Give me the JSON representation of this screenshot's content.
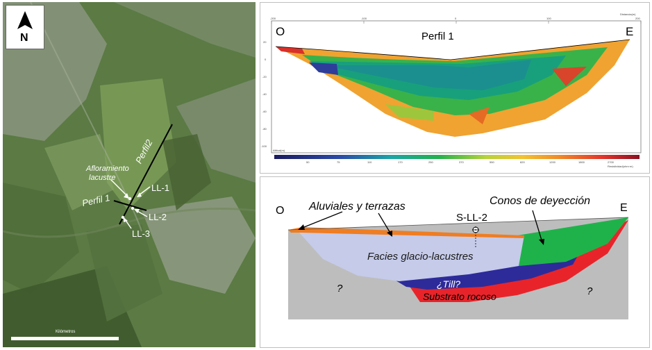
{
  "map": {
    "north_label": "N",
    "outcrop_label_1": "Afloramiento",
    "outcrop_label_2": "lacustre",
    "profile1_label": "Perfil 1",
    "profile2_label": "Perfil2",
    "points": [
      "LL-1",
      "LL-2",
      "LL-3"
    ],
    "scale_label": "Kilómetros"
  },
  "profile": {
    "title": "Perfil 1",
    "west_label": "O",
    "east_label": "E",
    "top_axis_ticks": [
      "-200",
      "-100",
      "0",
      "100",
      "200"
    ],
    "top_axis_unit": "Distancia(m)",
    "left_axis_ticks": [
      "20",
      "0",
      "-20",
      "-40",
      "-60",
      "-80",
      "-100"
    ],
    "left_axis_unit": "Altitud(m)",
    "colorbar_ticks": [
      "50",
      "75",
      "110",
      "170",
      "250",
      "370",
      "550",
      "820",
      "1200",
      "1800",
      "2700"
    ],
    "colorbar_label": "Resistividad(ohm·m)"
  },
  "schema": {
    "west_label": "O",
    "east_label": "E",
    "alluvial_label": "Aluviales y terrazas",
    "cones_label": "Conos de deyección",
    "borehole_label": "S-LL-2",
    "glacio_label": "Facies glacio-lacustres",
    "till_label": "¿Till?",
    "bedrock_label": "Substrato rocoso",
    "unknown_left": "?",
    "unknown_right": "?",
    "colors": {
      "bedrock_gray": "#bdbdbd",
      "glacio": "#c5cbe9",
      "till": "#2d2b9a",
      "substrate": "#e8242a",
      "cones": "#1fb24a",
      "alluvial": "#ef7d22"
    }
  }
}
